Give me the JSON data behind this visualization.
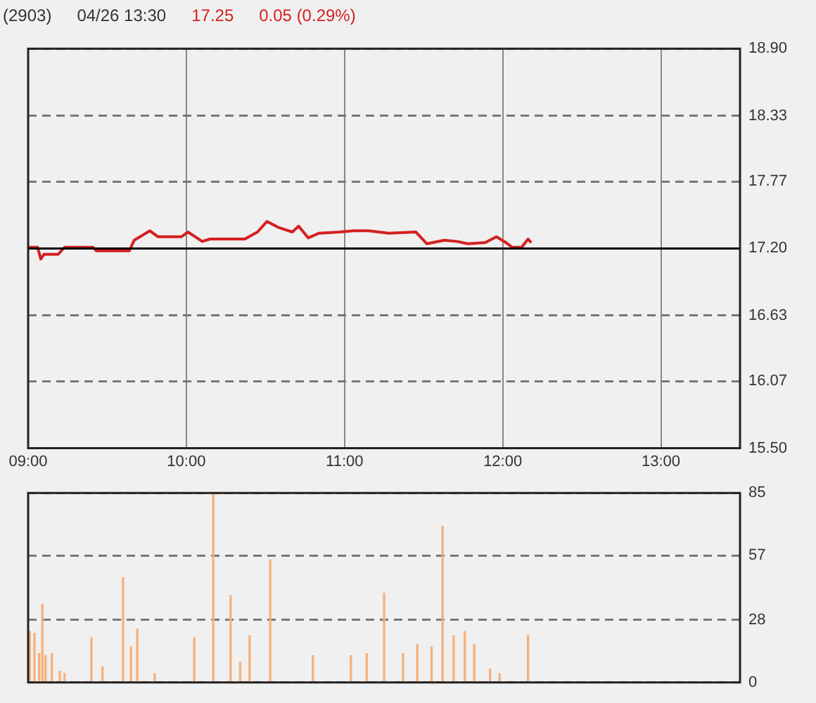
{
  "chart_data": [
    {
      "type": "line",
      "title": "(2903)",
      "annotations": [
        "04/26 13:30",
        "17.25",
        "0.05 (0.29%)"
      ],
      "x": [
        9.0,
        9.06,
        9.08,
        9.1,
        9.19,
        9.23,
        9.41,
        9.43,
        9.64,
        9.67,
        9.77,
        9.82,
        9.97,
        10.01,
        10.1,
        10.15,
        10.19,
        10.37,
        10.45,
        10.51,
        10.58,
        10.67,
        10.71,
        10.77,
        10.84,
        10.97,
        11.06,
        11.15,
        11.28,
        11.45,
        11.52,
        11.63,
        11.71,
        11.78,
        11.89,
        11.96,
        12.02,
        12.06,
        12.12,
        12.16,
        12.18
      ],
      "series": [
        {
          "color": "#d42020",
          "values": [
            17.21,
            17.21,
            17.11,
            17.15,
            17.15,
            17.21,
            17.21,
            17.18,
            17.18,
            17.27,
            17.35,
            17.3,
            17.3,
            17.34,
            17.26,
            17.28,
            17.28,
            17.28,
            17.34,
            17.43,
            17.38,
            17.34,
            17.39,
            17.29,
            17.33,
            17.34,
            17.35,
            17.35,
            17.33,
            17.34,
            17.24,
            17.27,
            17.26,
            17.24,
            17.25,
            17.3,
            17.25,
            17.21,
            17.21,
            17.28,
            17.25
          ]
        }
      ],
      "xlim": [
        9,
        13.5
      ],
      "xticks": [
        {
          "value": 9,
          "label": "09:00"
        },
        {
          "value": 10,
          "label": "10:00"
        },
        {
          "value": 11,
          "label": "11:00"
        },
        {
          "value": 12,
          "label": "12:00"
        },
        {
          "value": 13,
          "label": "13:00"
        }
      ],
      "ylim": [
        15.5,
        18.9
      ],
      "yticks": [
        {
          "value": 15.5,
          "label": "15.50"
        },
        {
          "value": 16.07,
          "label": "16.07"
        },
        {
          "value": 16.63,
          "label": "16.63"
        },
        {
          "value": 17.2,
          "label": "17.20"
        },
        {
          "value": 17.77,
          "label": "17.77"
        },
        {
          "value": 18.33,
          "label": "18.33"
        },
        {
          "value": 18.9,
          "label": "18.90"
        }
      ],
      "ref_lines": [
        {
          "axis": "y",
          "value": 17.2,
          "color": "#000000"
        }
      ],
      "grid": true,
      "marker": "none",
      "legend": false
    },
    {
      "type": "bar",
      "x": [
        9.01,
        9.04,
        9.07,
        9.09,
        9.11,
        9.15,
        9.2,
        9.23,
        9.4,
        9.47,
        9.6,
        9.65,
        9.69,
        9.8,
        10.05,
        10.17,
        10.28,
        10.34,
        10.4,
        10.53,
        10.8,
        11.04,
        11.14,
        11.25,
        11.37,
        11.46,
        11.55,
        11.62,
        11.69,
        11.76,
        11.82,
        11.92,
        11.98,
        12.16
      ],
      "values": [
        23,
        22,
        13,
        35,
        12,
        13,
        5,
        4,
        20,
        7,
        47,
        16,
        24,
        4,
        20,
        85,
        39,
        9,
        21,
        55,
        12,
        12,
        13,
        40,
        13,
        17,
        16,
        70,
        21,
        23,
        17,
        6,
        4,
        21
      ],
      "color": "#f7b07a",
      "xlim": [
        9,
        13.5
      ],
      "xticks": [
        {
          "value": 9,
          "label": null
        },
        {
          "value": 10,
          "label": null
        },
        {
          "value": 11,
          "label": null
        },
        {
          "value": 12,
          "label": null
        },
        {
          "value": 13,
          "label": null
        }
      ],
      "ylim": [
        0,
        85
      ],
      "yticks": [
        0,
        28,
        57,
        85
      ],
      "tick_labels": "y",
      "grid": "y",
      "legend": false
    }
  ]
}
